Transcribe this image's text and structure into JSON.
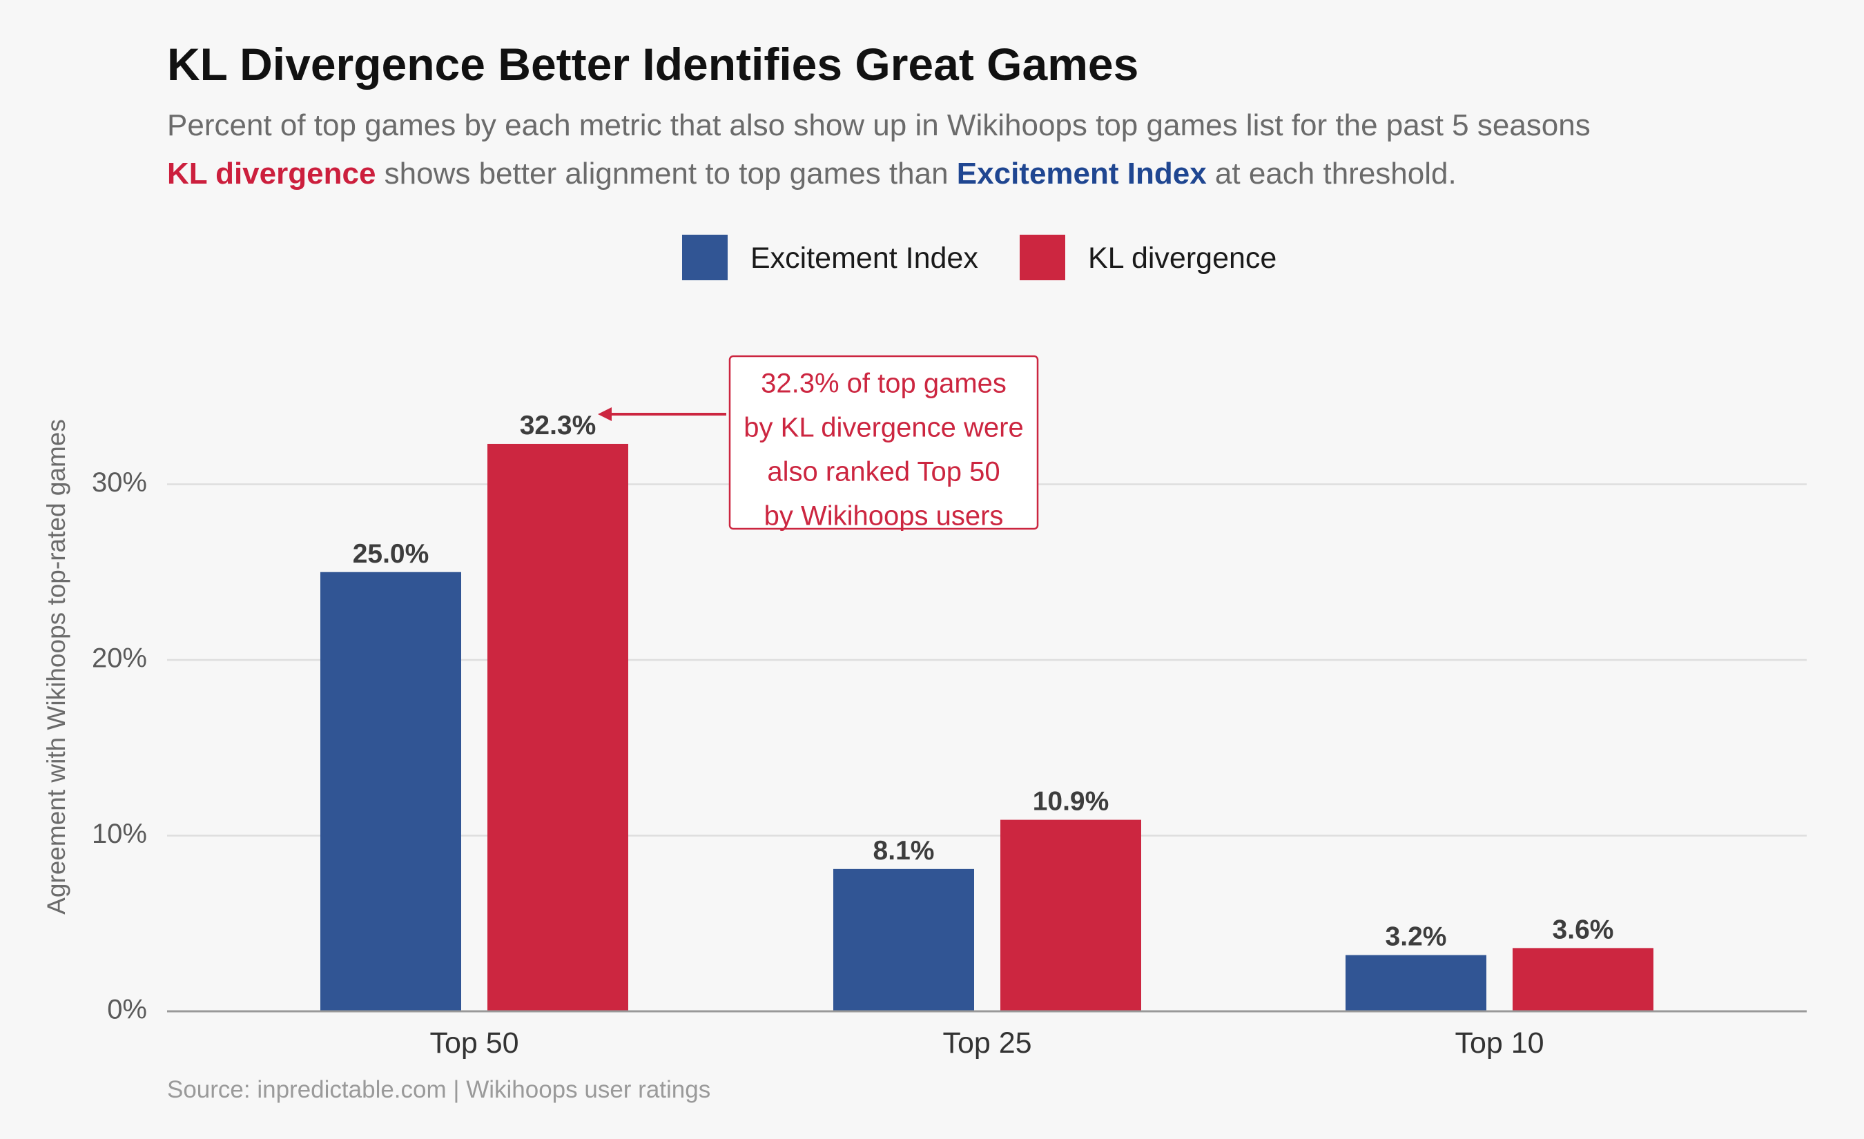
{
  "colors": {
    "excitement": "#315594",
    "kl": "#cc2640",
    "kl_text": "#cc1f3d",
    "excitement_text": "#1f4691",
    "grid": "#dedede",
    "axis": "#999999"
  },
  "subtitle": {
    "line1": "Percent of top games by each metric that also show up in Wikihoops top games list for the past 5 seasons",
    "line2_kl": "KL divergence",
    "line2_mid": " shows better alignment to top games than ",
    "line2_ei": "Excitement Index",
    "line2_end": " at each threshold."
  },
  "source": "Source: inpredictable.com  |  Wikihoops user ratings",
  "chart_data": {
    "type": "bar",
    "title": "KL Divergence Better Identifies Great Games",
    "categories": [
      "Top 50",
      "Top 25",
      "Top 10"
    ],
    "series": [
      {
        "name": "Excitement Index",
        "values": [
          25.0,
          8.1,
          3.2
        ],
        "labels": [
          "25.0%",
          "8.1%",
          "3.2%"
        ]
      },
      {
        "name": "KL divergence",
        "values": [
          32.3,
          10.9,
          3.6
        ],
        "labels": [
          "32.3%",
          "10.9%",
          "3.6%"
        ]
      }
    ],
    "xlabel": "",
    "ylabel": "Agreement with Wikihoops top-rated games",
    "ylim": [
      0,
      38
    ],
    "yticks": [
      0,
      10,
      20,
      30
    ],
    "ytick_labels": [
      "0%",
      "10%",
      "20%",
      "30%"
    ],
    "grid": true,
    "legend": "top-center",
    "annotation": {
      "lines": [
        "32.3% of top games",
        "by KL divergence were",
        "also ranked Top 50",
        "by Wikihoops users"
      ],
      "target_series": 1,
      "target_category": 0
    }
  }
}
